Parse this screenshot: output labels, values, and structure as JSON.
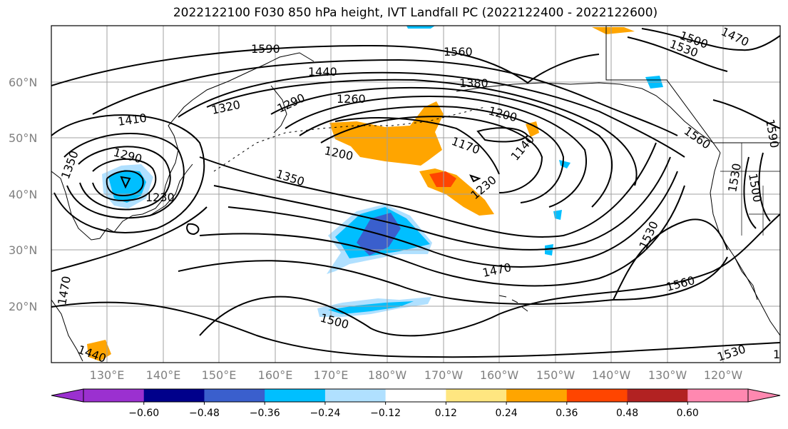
{
  "title": "2022122100 F030 850 hPa height, IVT Landfall PC (2022122400 - 2022122600)",
  "lat_labels": [
    "60°N",
    "50°N",
    "40°N",
    "30°N",
    "20°N"
  ],
  "lon_labels": [
    "130°E",
    "140°E",
    "150°E",
    "160°E",
    "170°E",
    "180°W",
    "170°W",
    "160°W",
    "150°W",
    "140°W",
    "130°W",
    "120°W"
  ],
  "contour_labels": [
    "1590",
    "1560",
    "1500",
    "1470",
    "1530",
    "1440",
    "1380",
    "1320",
    "1290",
    "1260",
    "1200",
    "1410",
    "1290",
    "1350",
    "1230",
    "1200",
    "1170",
    "1140",
    "1230",
    "1350",
    "1560",
    "1530",
    "1530",
    "1500",
    "1530",
    "1470",
    "1560",
    "1500",
    "1470",
    "1440",
    "1530",
    "1590"
  ],
  "colorbar": {
    "tick_labels": [
      "−0.60",
      "−0.48",
      "−0.36",
      "−0.24",
      "−0.12",
      "0.12",
      "0.24",
      "0.36",
      "0.48",
      "0.60"
    ],
    "colors": [
      "#9b30d0",
      "#00008b",
      "#3a5fcd",
      "#00bfff",
      "#b0e0ff",
      "#ffffff",
      "#ffe680",
      "#ffa500",
      "#ff4500",
      "#b22222",
      "#ff88b0",
      "#ff88b0"
    ],
    "under_color": "#9b30d0",
    "over_color": "#ff88b0"
  },
  "colors": {
    "positive_orange": "#ffa500",
    "positive_red": "#ff4500",
    "negative_blue": "#00bfff",
    "negative_light": "#b0e0ff",
    "negative_dark": "#3a5fcd"
  }
}
